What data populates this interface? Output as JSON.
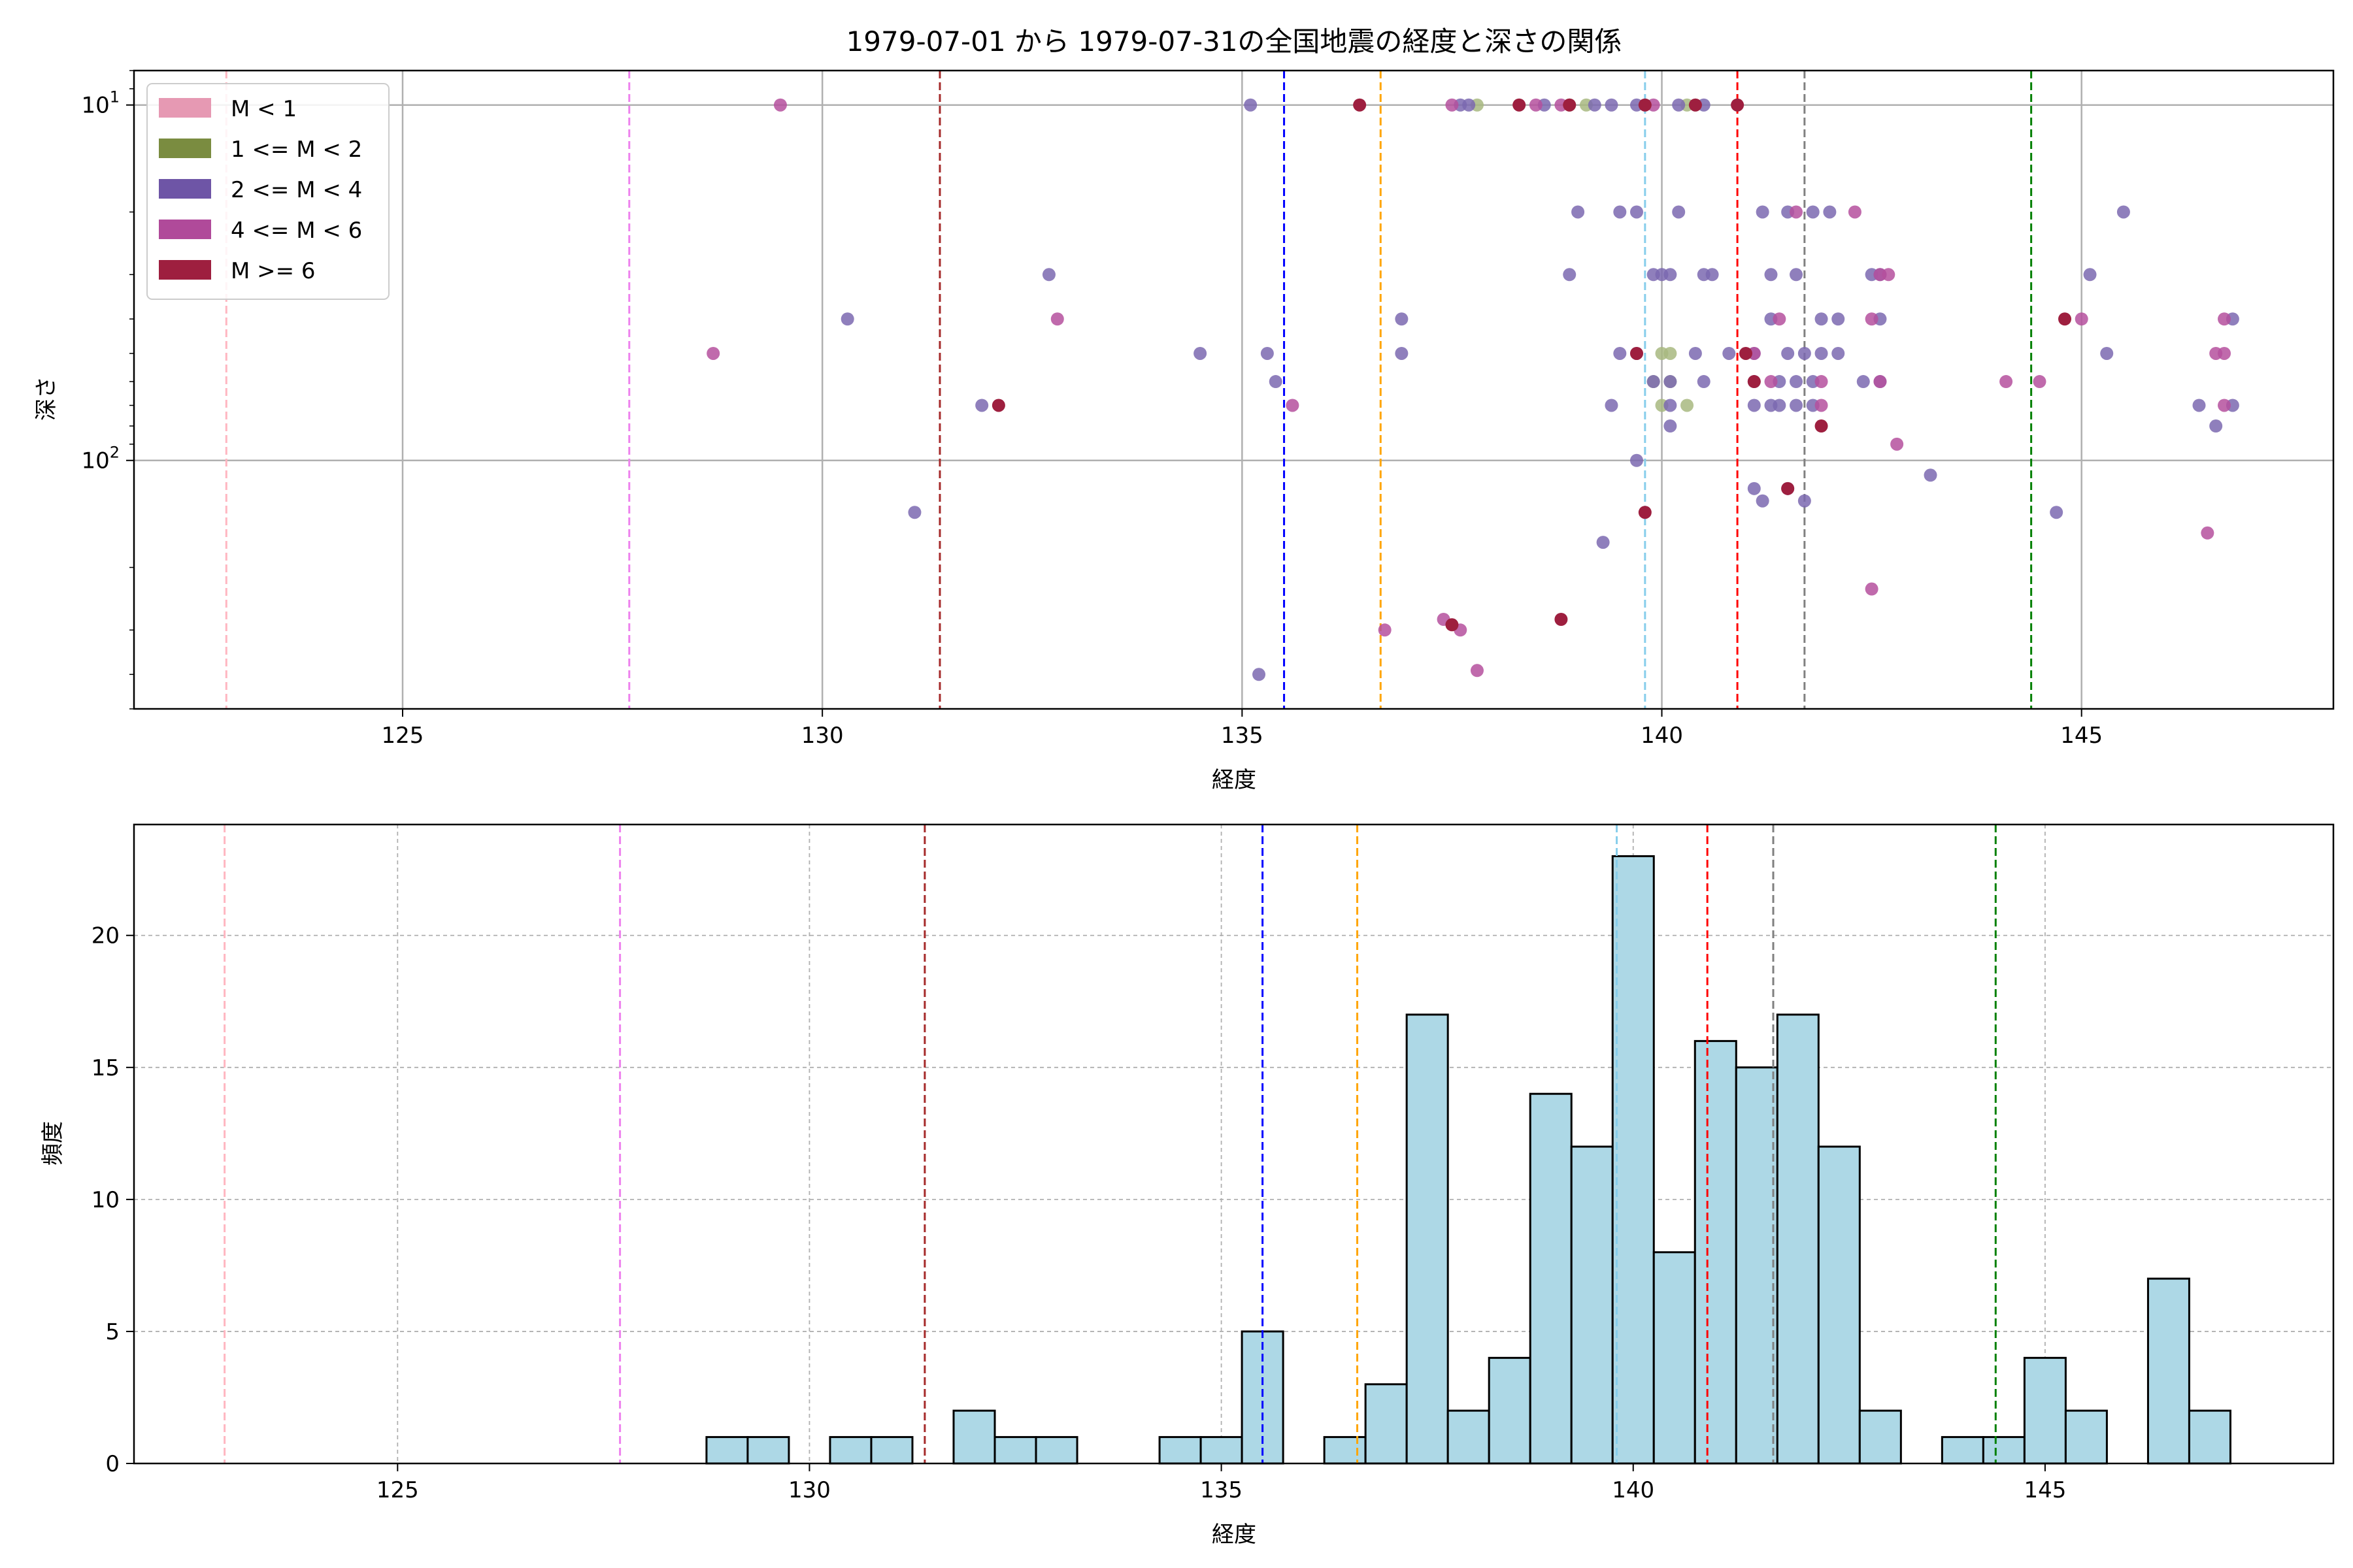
{
  "chart_data": [
    {
      "type": "scatter",
      "title": "1979-07-01 から 1979-07-31の全国地震の経度と深さの関係",
      "xlabel": "経度",
      "ylabel": "深さ",
      "xlim": [
        121.8,
        148.0
      ],
      "ylim": [
        500,
        8
      ],
      "yscale": "log",
      "y_inverted": true,
      "xticks": [
        125,
        130,
        135,
        140,
        145
      ],
      "yticks": [
        {
          "value": 10,
          "base": "10",
          "exp": "1"
        },
        {
          "value": 100,
          "base": "10",
          "exp": "2"
        }
      ],
      "grid": true,
      "legend_position": "top-left",
      "legend": [
        {
          "label": "M < 1",
          "color": "#e699b3"
        },
        {
          "label": "1 <= M < 2",
          "color": "#7a8c40"
        },
        {
          "label": "2 <= M < 4",
          "color": "#6e55a6"
        },
        {
          "label": "4 <= M < 6",
          "color": "#b04a9a"
        },
        {
          "label": "M >= 6",
          "color": "#9e1f3f"
        }
      ],
      "series": [
        {
          "name": "1 <= M < 2",
          "color": "#a8b880",
          "points": [
            [
              137.8,
              10
            ],
            [
              138.9,
              10
            ],
            [
              139.1,
              10
            ],
            [
              140.3,
              10
            ],
            [
              139.9,
              60
            ],
            [
              140.1,
              60
            ],
            [
              140.0,
              70
            ],
            [
              140.3,
              70
            ],
            [
              140.0,
              50
            ],
            [
              140.1,
              50
            ]
          ]
        },
        {
          "name": "2 <= M < 4",
          "color": "#7b68b0",
          "points": [
            [
              135.1,
              10
            ],
            [
              137.6,
              10
            ],
            [
              138.6,
              10
            ],
            [
              139.2,
              10
            ],
            [
              139.4,
              10
            ],
            [
              139.7,
              10
            ],
            [
              140.2,
              10
            ],
            [
              140.5,
              10
            ],
            [
              137.7,
              10
            ],
            [
              139.0,
              20
            ],
            [
              139.5,
              20
            ],
            [
              139.7,
              20
            ],
            [
              140.2,
              20
            ],
            [
              141.2,
              20
            ],
            [
              141.5,
              20
            ],
            [
              141.8,
              20
            ],
            [
              142.0,
              20
            ],
            [
              138.9,
              30
            ],
            [
              139.9,
              30
            ],
            [
              140.0,
              30
            ],
            [
              140.1,
              30
            ],
            [
              140.5,
              30
            ],
            [
              140.6,
              30
            ],
            [
              141.3,
              30
            ],
            [
              141.6,
              30
            ],
            [
              142.5,
              30
            ],
            [
              142.6,
              30
            ],
            [
              145.1,
              30
            ],
            [
              145.5,
              20
            ],
            [
              132.7,
              30
            ],
            [
              130.3,
              40
            ],
            [
              136.9,
              40
            ],
            [
              141.3,
              40
            ],
            [
              141.9,
              40
            ],
            [
              142.1,
              40
            ],
            [
              142.6,
              40
            ],
            [
              146.8,
              40
            ],
            [
              134.5,
              50
            ],
            [
              135.3,
              50
            ],
            [
              136.9,
              50
            ],
            [
              139.5,
              50
            ],
            [
              140.4,
              50
            ],
            [
              140.8,
              50
            ],
            [
              141.1,
              50
            ],
            [
              141.5,
              50
            ],
            [
              141.7,
              50
            ],
            [
              141.9,
              50
            ],
            [
              142.1,
              50
            ],
            [
              145.3,
              50
            ],
            [
              139.7,
              50
            ],
            [
              139.9,
              60
            ],
            [
              140.1,
              60
            ],
            [
              140.5,
              60
            ],
            [
              141.1,
              60
            ],
            [
              141.4,
              60
            ],
            [
              141.6,
              60
            ],
            [
              141.8,
              60
            ],
            [
              142.4,
              60
            ],
            [
              142.6,
              60
            ],
            [
              135.4,
              60
            ],
            [
              131.9,
              70
            ],
            [
              139.4,
              70
            ],
            [
              140.1,
              70
            ],
            [
              141.1,
              70
            ],
            [
              141.3,
              70
            ],
            [
              141.4,
              70
            ],
            [
              141.6,
              70
            ],
            [
              141.8,
              70
            ],
            [
              146.4,
              70
            ],
            [
              146.8,
              70
            ],
            [
              140.1,
              80
            ],
            [
              146.6,
              80
            ],
            [
              139.7,
              100
            ],
            [
              141.1,
              120
            ],
            [
              141.5,
              120
            ],
            [
              141.7,
              130
            ],
            [
              141.2,
              130
            ],
            [
              143.2,
              110
            ],
            [
              131.1,
              140
            ],
            [
              144.7,
              140
            ],
            [
              139.3,
              170
            ],
            [
              135.2,
              400
            ]
          ]
        },
        {
          "name": "4 <= M < 6",
          "color": "#b5509e",
          "points": [
            [
              129.5,
              10
            ],
            [
              137.5,
              10
            ],
            [
              138.5,
              10
            ],
            [
              138.8,
              10
            ],
            [
              139.9,
              10
            ],
            [
              141.6,
              20
            ],
            [
              142.3,
              20
            ],
            [
              142.6,
              30
            ],
            [
              142.7,
              30
            ],
            [
              132.8,
              40
            ],
            [
              141.4,
              40
            ],
            [
              142.5,
              40
            ],
            [
              145.0,
              40
            ],
            [
              146.7,
              40
            ],
            [
              128.7,
              50
            ],
            [
              141.1,
              50
            ],
            [
              146.6,
              50
            ],
            [
              146.7,
              50
            ],
            [
              141.3,
              60
            ],
            [
              141.9,
              60
            ],
            [
              142.6,
              60
            ],
            [
              144.1,
              60
            ],
            [
              144.5,
              60
            ],
            [
              135.6,
              70
            ],
            [
              141.9,
              70
            ],
            [
              146.7,
              70
            ],
            [
              142.8,
              90
            ],
            [
              146.5,
              160
            ],
            [
              142.5,
              230
            ],
            [
              137.4,
              280
            ],
            [
              137.6,
              300
            ],
            [
              136.7,
              300
            ],
            [
              137.8,
              390
            ]
          ]
        },
        {
          "name": "M >= 6",
          "color": "#9e1f3f",
          "points": [
            [
              136.4,
              10
            ],
            [
              138.3,
              10
            ],
            [
              138.9,
              10
            ],
            [
              139.8,
              10
            ],
            [
              140.4,
              10
            ],
            [
              140.9,
              10
            ],
            [
              132.1,
              70
            ],
            [
              139.7,
              50
            ],
            [
              141.0,
              50
            ],
            [
              141.1,
              60
            ],
            [
              144.8,
              40
            ],
            [
              141.9,
              80
            ],
            [
              139.8,
              140
            ],
            [
              141.5,
              120
            ],
            [
              137.5,
              290
            ],
            [
              138.8,
              280
            ]
          ]
        }
      ],
      "reference_lines_x": [
        {
          "x": 122.9,
          "color": "#ffb6c1"
        },
        {
          "x": 127.7,
          "color": "#ee82ee"
        },
        {
          "x": 131.4,
          "color": "#a52a2a"
        },
        {
          "x": 135.5,
          "color": "#0000ff"
        },
        {
          "x": 136.65,
          "color": "#ffa500"
        },
        {
          "x": 139.8,
          "color": "#87ceeb"
        },
        {
          "x": 140.9,
          "color": "#ff0000"
        },
        {
          "x": 141.7,
          "color": "#808080"
        },
        {
          "x": 144.4,
          "color": "#008000"
        }
      ]
    },
    {
      "type": "bar",
      "xlabel": "経度",
      "ylabel": "頻度",
      "xlim": [
        121.8,
        148.5
      ],
      "ylim": [
        0,
        24.2
      ],
      "xticks": [
        125,
        130,
        135,
        140,
        145
      ],
      "yticks": [
        0,
        5,
        10,
        15,
        20
      ],
      "grid": true,
      "bar_color": "#add8e6",
      "bin_width": 0.5,
      "bins": [
        {
          "left": 128.75,
          "count": 1
        },
        {
          "left": 129.25,
          "count": 1
        },
        {
          "left": 130.25,
          "count": 1
        },
        {
          "left": 130.75,
          "count": 1
        },
        {
          "left": 131.75,
          "count": 2
        },
        {
          "left": 132.25,
          "count": 1
        },
        {
          "left": 132.75,
          "count": 1
        },
        {
          "left": 134.25,
          "count": 1
        },
        {
          "left": 134.75,
          "count": 1
        },
        {
          "left": 135.25,
          "count": 5
        },
        {
          "left": 136.25,
          "count": 1
        },
        {
          "left": 136.75,
          "count": 3
        },
        {
          "left": 137.25,
          "count": 17
        },
        {
          "left": 137.75,
          "count": 2
        },
        {
          "left": 138.25,
          "count": 4
        },
        {
          "left": 138.75,
          "count": 14
        },
        {
          "left": 139.25,
          "count": 12
        },
        {
          "left": 139.75,
          "count": 23
        },
        {
          "left": 140.25,
          "count": 8
        },
        {
          "left": 140.75,
          "count": 16
        },
        {
          "left": 141.25,
          "count": 15
        },
        {
          "left": 141.75,
          "count": 17
        },
        {
          "left": 142.25,
          "count": 12
        },
        {
          "left": 142.75,
          "count": 2
        },
        {
          "left": 143.75,
          "count": 1
        },
        {
          "left": 144.25,
          "count": 1
        },
        {
          "left": 144.75,
          "count": 4
        },
        {
          "left": 145.25,
          "count": 2
        },
        {
          "left": 146.25,
          "count": 7
        },
        {
          "left": 146.75,
          "count": 2
        }
      ],
      "reference_lines_x": [
        {
          "x": 122.9,
          "color": "#ffb6c1"
        },
        {
          "x": 127.7,
          "color": "#ee82ee"
        },
        {
          "x": 131.4,
          "color": "#a52a2a"
        },
        {
          "x": 135.5,
          "color": "#0000ff"
        },
        {
          "x": 136.65,
          "color": "#ffa500"
        },
        {
          "x": 139.8,
          "color": "#87ceeb"
        },
        {
          "x": 140.9,
          "color": "#ff0000"
        },
        {
          "x": 141.7,
          "color": "#808080"
        },
        {
          "x": 144.4,
          "color": "#008000"
        }
      ]
    }
  ]
}
